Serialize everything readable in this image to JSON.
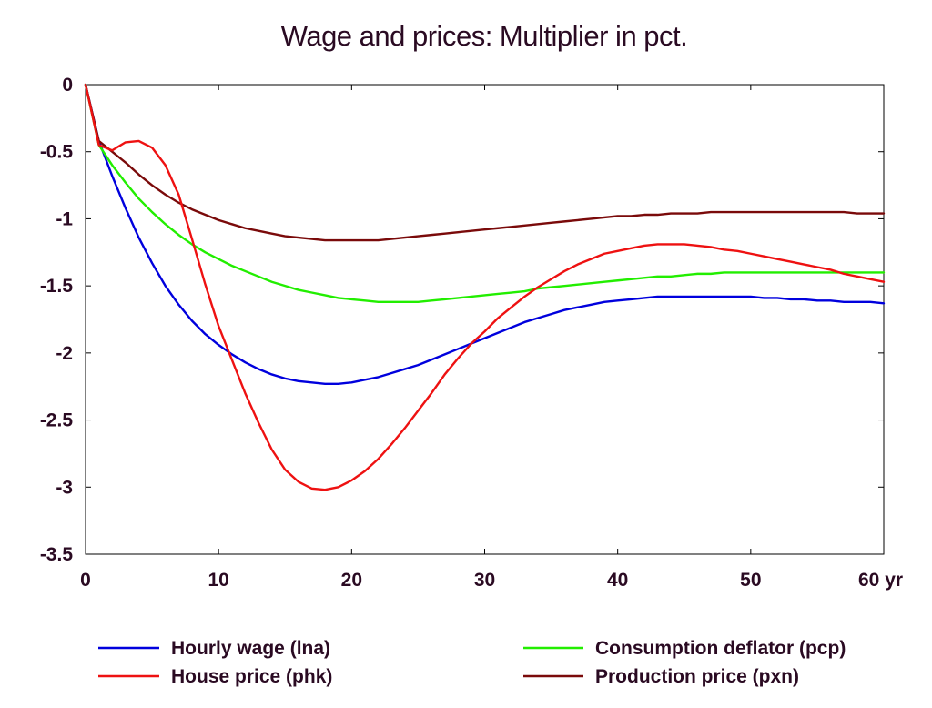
{
  "chart_data": {
    "type": "line",
    "title": "Wage and prices: Multiplier in pct.",
    "xlabel": "",
    "ylabel": "",
    "x_unit": "yr",
    "xlim": [
      0,
      60
    ],
    "ylim": [
      -3.5,
      0
    ],
    "x_ticks": [
      0,
      10,
      20,
      30,
      40,
      50,
      60
    ],
    "x_tick_labels": [
      "0",
      "10",
      "20",
      "30",
      "40",
      "50",
      "60 yr"
    ],
    "y_ticks": [
      0,
      -0.5,
      -1,
      -1.5,
      -2,
      -2.5,
      -3,
      -3.5
    ],
    "y_tick_labels": [
      "0",
      "-0.5",
      "-1",
      "-1.5",
      "-2",
      "-2.5",
      "-3",
      "-3.5"
    ],
    "grid": false,
    "legend_position": "bottom",
    "x": [
      0,
      1,
      2,
      3,
      4,
      5,
      6,
      7,
      8,
      9,
      10,
      11,
      12,
      13,
      14,
      15,
      16,
      17,
      18,
      19,
      20,
      21,
      22,
      23,
      24,
      25,
      26,
      27,
      28,
      29,
      30,
      31,
      32,
      33,
      34,
      35,
      36,
      37,
      38,
      39,
      40,
      41,
      42,
      43,
      44,
      45,
      46,
      47,
      48,
      49,
      50,
      51,
      52,
      53,
      54,
      55,
      56,
      57,
      58,
      59,
      60
    ],
    "series": [
      {
        "name": "Hourly wage (lna)",
        "color": "#0000dd",
        "values": [
          0,
          -0.42,
          -0.68,
          -0.92,
          -1.14,
          -1.33,
          -1.5,
          -1.64,
          -1.76,
          -1.86,
          -1.94,
          -2.01,
          -2.07,
          -2.12,
          -2.16,
          -2.19,
          -2.21,
          -2.22,
          -2.23,
          -2.23,
          -2.22,
          -2.2,
          -2.18,
          -2.15,
          -2.12,
          -2.09,
          -2.05,
          -2.01,
          -1.97,
          -1.93,
          -1.89,
          -1.85,
          -1.81,
          -1.77,
          -1.74,
          -1.71,
          -1.68,
          -1.66,
          -1.64,
          -1.62,
          -1.61,
          -1.6,
          -1.59,
          -1.58,
          -1.58,
          -1.58,
          -1.58,
          -1.58,
          -1.58,
          -1.58,
          -1.58,
          -1.59,
          -1.59,
          -1.6,
          -1.6,
          -1.61,
          -1.61,
          -1.62,
          -1.62,
          -1.62,
          -1.63
        ]
      },
      {
        "name": "Consumption deflator (pcp)",
        "color": "#22ee00",
        "values": [
          0,
          -0.45,
          -0.6,
          -0.73,
          -0.85,
          -0.95,
          -1.04,
          -1.12,
          -1.19,
          -1.25,
          -1.3,
          -1.35,
          -1.39,
          -1.43,
          -1.47,
          -1.5,
          -1.53,
          -1.55,
          -1.57,
          -1.59,
          -1.6,
          -1.61,
          -1.62,
          -1.62,
          -1.62,
          -1.62,
          -1.61,
          -1.6,
          -1.59,
          -1.58,
          -1.57,
          -1.56,
          -1.55,
          -1.54,
          -1.52,
          -1.51,
          -1.5,
          -1.49,
          -1.48,
          -1.47,
          -1.46,
          -1.45,
          -1.44,
          -1.43,
          -1.43,
          -1.42,
          -1.41,
          -1.41,
          -1.4,
          -1.4,
          -1.4,
          -1.4,
          -1.4,
          -1.4,
          -1.4,
          -1.4,
          -1.4,
          -1.4,
          -1.4,
          -1.4,
          -1.4
        ]
      },
      {
        "name": "House price (phk)",
        "color": "#ee1111",
        "values": [
          0,
          -0.45,
          -0.49,
          -0.43,
          -0.42,
          -0.47,
          -0.6,
          -0.82,
          -1.15,
          -1.49,
          -1.8,
          -2.05,
          -2.3,
          -2.52,
          -2.72,
          -2.87,
          -2.96,
          -3.01,
          -3.02,
          -3.0,
          -2.95,
          -2.88,
          -2.79,
          -2.68,
          -2.56,
          -2.43,
          -2.3,
          -2.16,
          -2.04,
          -1.93,
          -1.84,
          -1.74,
          -1.66,
          -1.58,
          -1.51,
          -1.45,
          -1.39,
          -1.34,
          -1.3,
          -1.26,
          -1.24,
          -1.22,
          -1.2,
          -1.19,
          -1.19,
          -1.19,
          -1.2,
          -1.21,
          -1.23,
          -1.24,
          -1.26,
          -1.28,
          -1.3,
          -1.32,
          -1.34,
          -1.36,
          -1.38,
          -1.41,
          -1.43,
          -1.45,
          -1.47
        ]
      },
      {
        "name": "Production price (pxn)",
        "color": "#7a0a0a",
        "values": [
          0,
          -0.42,
          -0.5,
          -0.58,
          -0.67,
          -0.75,
          -0.82,
          -0.88,
          -0.93,
          -0.97,
          -1.01,
          -1.04,
          -1.07,
          -1.09,
          -1.11,
          -1.13,
          -1.14,
          -1.15,
          -1.16,
          -1.16,
          -1.16,
          -1.16,
          -1.16,
          -1.15,
          -1.14,
          -1.13,
          -1.12,
          -1.11,
          -1.1,
          -1.09,
          -1.08,
          -1.07,
          -1.06,
          -1.05,
          -1.04,
          -1.03,
          -1.02,
          -1.01,
          -1.0,
          -0.99,
          -0.98,
          -0.98,
          -0.97,
          -0.97,
          -0.96,
          -0.96,
          -0.96,
          -0.95,
          -0.95,
          -0.95,
          -0.95,
          -0.95,
          -0.95,
          -0.95,
          -0.95,
          -0.95,
          -0.95,
          -0.95,
          -0.96,
          -0.96,
          -0.96
        ]
      }
    ]
  },
  "legend": {
    "items": [
      {
        "label": "Hourly wage (lna)",
        "color": "#0000dd"
      },
      {
        "label": "Consumption deflator (pcp)",
        "color": "#22ee00"
      },
      {
        "label": "House price (phk)",
        "color": "#ee1111"
      },
      {
        "label": "Production price (pxn)",
        "color": "#7a0a0a"
      }
    ]
  }
}
